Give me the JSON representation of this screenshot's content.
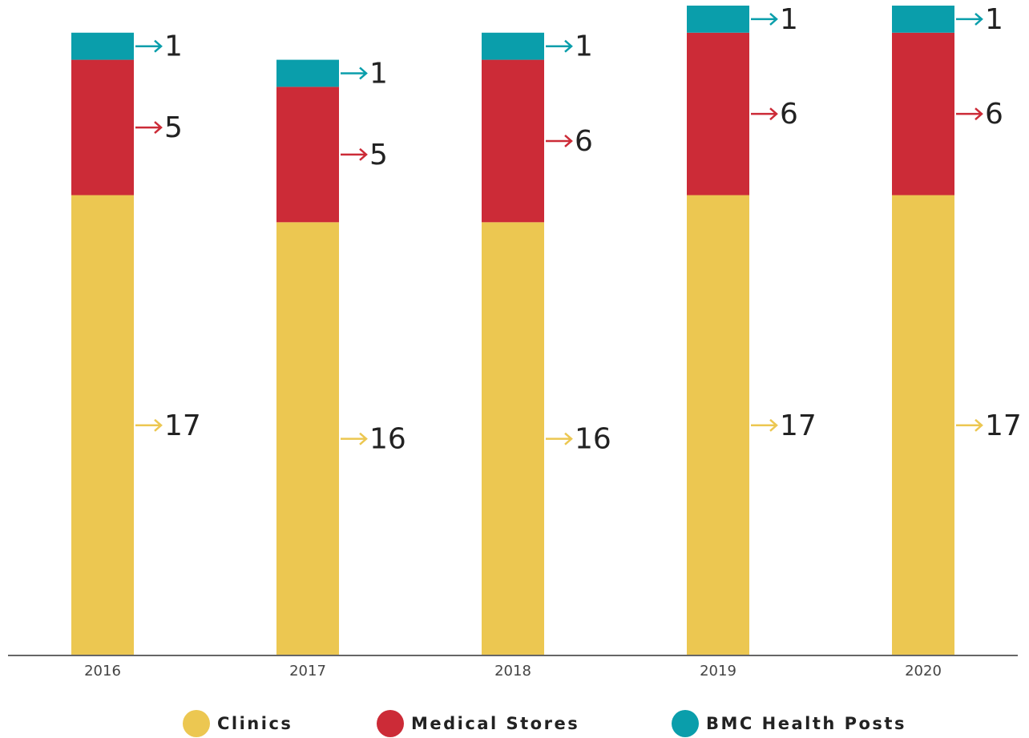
{
  "chart_data": {
    "type": "bar",
    "stacked": true,
    "categories": [
      "2016",
      "2017",
      "2018",
      "2019",
      "2020"
    ],
    "series": [
      {
        "name": "Clinics",
        "color": "#ecc751",
        "values": [
          17,
          16,
          16,
          17,
          17
        ]
      },
      {
        "name": "Medical Stores",
        "color": "#cc2b37",
        "values": [
          5,
          5,
          6,
          6,
          6
        ]
      },
      {
        "name": "BMC Health Posts",
        "color": "#0a9eab",
        "values": [
          1,
          1,
          1,
          1,
          1
        ]
      }
    ],
    "ylim": [
      0,
      24
    ]
  }
}
